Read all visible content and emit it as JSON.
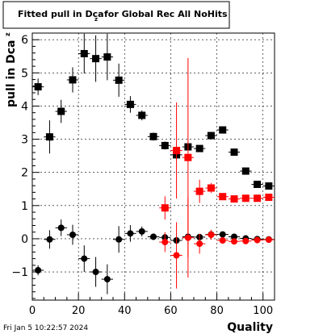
{
  "chart_data": {
    "type": "scatter",
    "title_main": "Fitted pull in Dca",
    "title_sub": "z",
    "title_rest": "for Global Rec All NoHits",
    "xlabel": "Quality",
    "ylabel_main": "pull in Dca",
    "ylabel_sub": "z",
    "xlim": [
      0,
      105
    ],
    "ylim": [
      -1.85,
      6.2
    ],
    "x_ticks": [
      0,
      20,
      40,
      60,
      80,
      100
    ],
    "y_ticks": [
      -1,
      0,
      1,
      2,
      3,
      4,
      5,
      6
    ],
    "x_tick_labels": [
      "0",
      "20",
      "40",
      "60",
      "80",
      "100"
    ],
    "y_tick_labels": [
      "−1",
      "0",
      "1",
      "2",
      "3",
      "4",
      "5",
      "6"
    ],
    "grid": true,
    "timestamp": "Fri Jan  5 10:22:57 2024",
    "series": [
      {
        "marker": "square",
        "color": "#000000",
        "points": [
          {
            "x": 2.5,
            "y": 4.58,
            "err": 0.25
          },
          {
            "x": 7.5,
            "y": 3.07,
            "err": 0.5
          },
          {
            "x": 12.5,
            "y": 3.84,
            "err": 0.35
          },
          {
            "x": 17.5,
            "y": 4.79,
            "err": 0.38
          },
          {
            "x": 22.5,
            "y": 5.58,
            "err": 0.6
          },
          {
            "x": 27.5,
            "y": 5.43,
            "err": 0.7
          },
          {
            "x": 32.5,
            "y": 5.48,
            "err": 0.7
          },
          {
            "x": 37.5,
            "y": 4.78,
            "err": 0.5
          },
          {
            "x": 42.5,
            "y": 4.05,
            "err": 0.25
          },
          {
            "x": 47.5,
            "y": 3.72,
            "err": 0.15
          },
          {
            "x": 52.5,
            "y": 3.08,
            "err": 0.12
          },
          {
            "x": 57.5,
            "y": 2.81,
            "err": 0.12
          },
          {
            "x": 62.5,
            "y": 2.53,
            "err": 0.1
          },
          {
            "x": 67.5,
            "y": 2.77,
            "err": 0.08
          },
          {
            "x": 72.5,
            "y": 2.72,
            "err": 0.06
          },
          {
            "x": 77.5,
            "y": 3.11,
            "err": 0.06
          },
          {
            "x": 82.5,
            "y": 3.28,
            "err": 0.05
          },
          {
            "x": 87.5,
            "y": 2.61,
            "err": 0.05
          },
          {
            "x": 92.5,
            "y": 2.04,
            "err": 0.04
          },
          {
            "x": 97.5,
            "y": 1.64,
            "err": 0.04
          },
          {
            "x": 102.5,
            "y": 1.59,
            "err": 0.03
          }
        ]
      },
      {
        "marker": "square",
        "color": "#ff0000",
        "points": [
          {
            "x": 57.5,
            "y": 0.93,
            "err": 0.35
          },
          {
            "x": 62.5,
            "y": 2.66,
            "err": 1.45
          },
          {
            "x": 67.5,
            "y": 2.45,
            "err": 3.0
          },
          {
            "x": 72.5,
            "y": 1.43,
            "err": 0.35
          },
          {
            "x": 77.5,
            "y": 1.53,
            "err": 0.15
          },
          {
            "x": 82.5,
            "y": 1.27,
            "err": 0.08
          },
          {
            "x": 87.5,
            "y": 1.2,
            "err": 0.05
          },
          {
            "x": 92.5,
            "y": 1.22,
            "err": 0.04
          },
          {
            "x": 97.5,
            "y": 1.22,
            "err": 0.04
          },
          {
            "x": 102.5,
            "y": 1.25,
            "err": 0.03
          }
        ]
      },
      {
        "marker": "circle",
        "color": "#000000",
        "points": [
          {
            "x": 2.5,
            "y": -0.95,
            "err": 0.15
          },
          {
            "x": 7.5,
            "y": -0.02,
            "err": 0.28
          },
          {
            "x": 12.5,
            "y": 0.33,
            "err": 0.25
          },
          {
            "x": 17.5,
            "y": 0.12,
            "err": 0.3
          },
          {
            "x": 22.5,
            "y": -0.6,
            "err": 0.4
          },
          {
            "x": 27.5,
            "y": -1.0,
            "err": 0.45
          },
          {
            "x": 32.5,
            "y": -1.22,
            "err": 0.45
          },
          {
            "x": 37.5,
            "y": -0.02,
            "err": 0.4
          },
          {
            "x": 42.5,
            "y": 0.16,
            "err": 0.25
          },
          {
            "x": 47.5,
            "y": 0.22,
            "err": 0.15
          },
          {
            "x": 52.5,
            "y": 0.06,
            "err": 0.1
          },
          {
            "x": 57.5,
            "y": 0.04,
            "err": 0.08
          },
          {
            "x": 62.5,
            "y": -0.05,
            "err": 0.07
          },
          {
            "x": 67.5,
            "y": 0.06,
            "err": 0.06
          },
          {
            "x": 72.5,
            "y": 0.05,
            "err": 0.05
          },
          {
            "x": 77.5,
            "y": 0.13,
            "err": 0.04
          },
          {
            "x": 82.5,
            "y": 0.13,
            "err": 0.04
          },
          {
            "x": 87.5,
            "y": 0.06,
            "err": 0.03
          },
          {
            "x": 92.5,
            "y": 0.01,
            "err": 0.03
          },
          {
            "x": 97.5,
            "y": -0.01,
            "err": 0.03
          },
          {
            "x": 102.5,
            "y": -0.02,
            "err": 0.03
          }
        ]
      },
      {
        "marker": "circle",
        "color": "#ff0000",
        "points": [
          {
            "x": 57.5,
            "y": -0.1,
            "err": 0.3
          },
          {
            "x": 62.5,
            "y": -0.5,
            "err": 1.0
          },
          {
            "x": 67.5,
            "y": 0.03,
            "err": 1.2
          },
          {
            "x": 72.5,
            "y": -0.15,
            "err": 0.3
          },
          {
            "x": 77.5,
            "y": 0.12,
            "err": 0.15
          },
          {
            "x": 82.5,
            "y": -0.05,
            "err": 0.08
          },
          {
            "x": 87.5,
            "y": -0.08,
            "err": 0.05
          },
          {
            "x": 92.5,
            "y": -0.07,
            "err": 0.04
          },
          {
            "x": 97.5,
            "y": -0.04,
            "err": 0.04
          },
          {
            "x": 102.5,
            "y": -0.03,
            "err": 0.03
          }
        ]
      }
    ]
  }
}
